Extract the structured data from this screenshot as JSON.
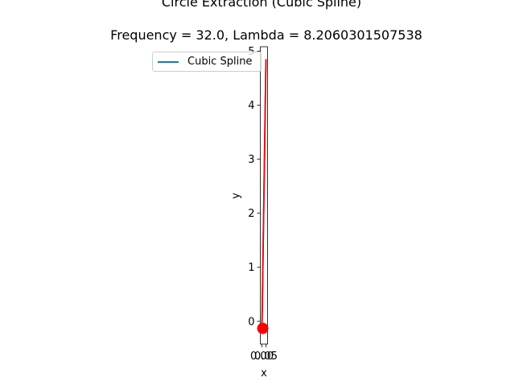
{
  "chart_data": {
    "type": "line",
    "title": "Circle Extraction (Cubic Spline)",
    "subtitle": "Frequency = 32.0, Lambda = 8.2060301507538",
    "xlabel": "x",
    "ylabel": "y",
    "xlim": [
      -0.02,
      0.07
    ],
    "ylim": [
      -0.42,
      5.08
    ],
    "xticks": [
      0.0,
      0.05
    ],
    "xtick_labels": [
      "0.00",
      "0.05"
    ],
    "yticks": [
      0,
      1,
      2,
      3,
      4,
      5
    ],
    "ytick_labels": [
      "0",
      "1",
      "2",
      "3",
      "4",
      "5"
    ],
    "grid": false,
    "legend_placement": "upper-left",
    "series": [
      {
        "name": "Cubic Spline",
        "color": "#1f77b4",
        "x": [
          0.0,
          0.05
        ],
        "y": [
          -0.15,
          4.85
        ]
      },
      {
        "color": "#ff0000",
        "x": [
          0.0,
          0.05
        ],
        "y": [
          -0.15,
          4.85
        ]
      }
    ],
    "points": [
      {
        "color": "#ff0000",
        "x": 0.01,
        "y": -0.13
      }
    ]
  }
}
